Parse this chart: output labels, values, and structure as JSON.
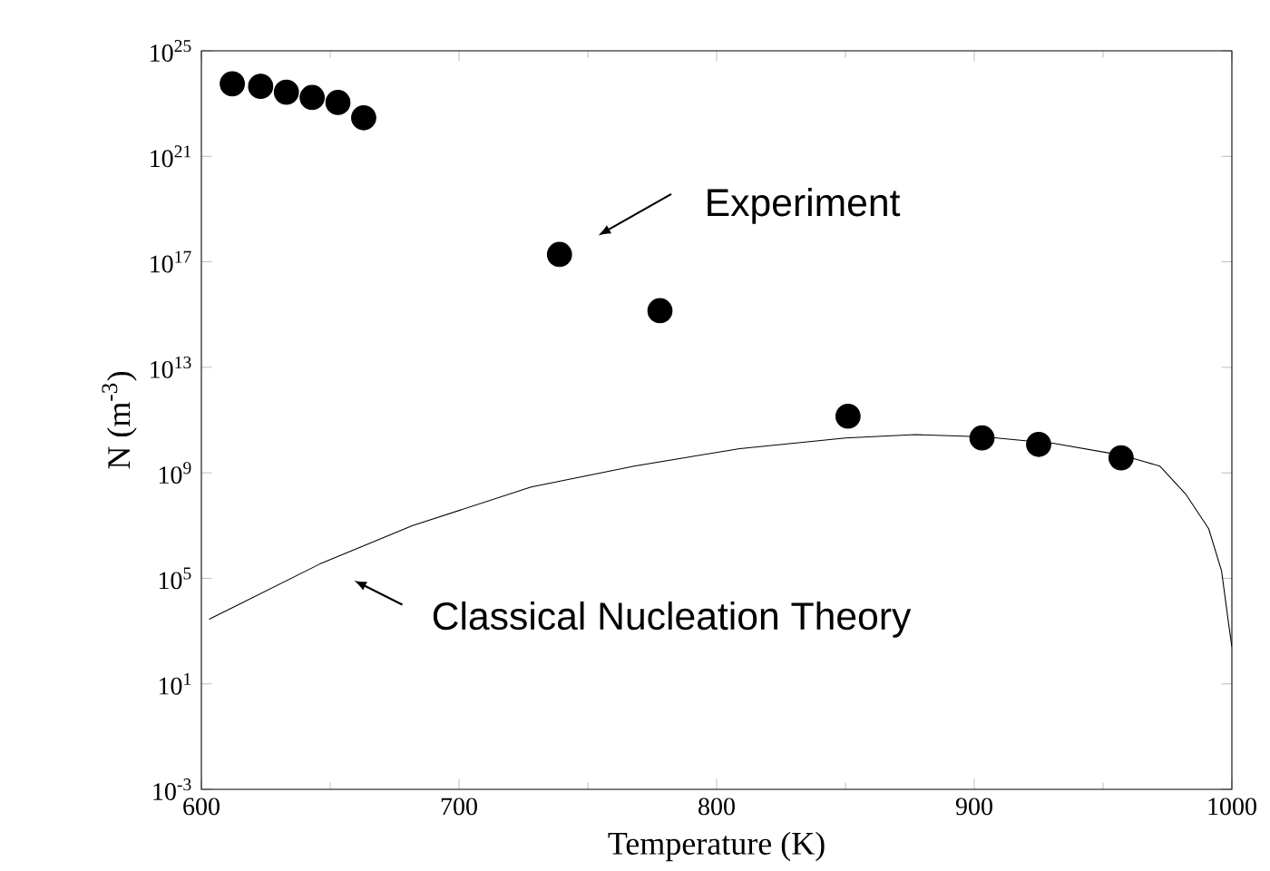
{
  "chart_data": {
    "type": "scatter",
    "xlabel": "Temperature (K)",
    "ylabel": "N (m$^{-3}$)",
    "log": "y",
    "grid": false,
    "xlim": [
      600,
      1000
    ],
    "xticks": [
      600,
      700,
      800,
      900,
      1000
    ],
    "ylim": [
      0.001,
      1e+25
    ],
    "yticks": [
      {
        "value": 0.001,
        "label": "10$^{-3}$"
      },
      {
        "value": 10,
        "label": "10$^{1}$"
      },
      {
        "value": 100000.0,
        "label": "10$^{5}$"
      },
      {
        "value": 1000000000.0,
        "label": "10$^{9}$"
      },
      {
        "value": 10000000000000.0,
        "label": "10$^{13}$"
      },
      {
        "value": 1e+17,
        "label": "10$^{17}$"
      },
      {
        "value": 1e+21,
        "label": "10$^{21}$"
      },
      {
        "value": 1e+25,
        "label": "10$^{25}$"
      }
    ],
    "series": [
      {
        "marker": "circle",
        "color": "#000000",
        "x": [
          612,
          623,
          633,
          643,
          653,
          663,
          739,
          778,
          851,
          903,
          925,
          957
        ],
        "values": [
          5.6e+23,
          4.5e+23,
          2.7e+23,
          1.7e+23,
          1.1e+23,
          2.9e+22,
          1.9e+17,
          1400000000000000.0,
          140000000000.0,
          21000000000.0,
          12000000000.0,
          3700000000.0
        ]
      },
      {
        "type": "line",
        "color": "#000000",
        "line_style": "solid",
        "marker": "none",
        "x": [
          603,
          646,
          682,
          728,
          768,
          809,
          850,
          877,
          904,
          931,
          958,
          972,
          982,
          991,
          996,
          998.5,
          1000
        ],
        "values": [
          2800.0,
          350000.0,
          10000000.0,
          290000000.0,
          1800000000.0,
          8300000000.0,
          21000000000.0,
          28000000000.0,
          23000000000.0,
          13000000000.0,
          4500000000.0,
          1800000000.0,
          160000000.0,
          7600000.0,
          190000.0,
          2800.0,
          250
        ]
      }
    ],
    "annotations": [
      "Experiment",
      "Classical Nucleation Theory"
    ]
  }
}
